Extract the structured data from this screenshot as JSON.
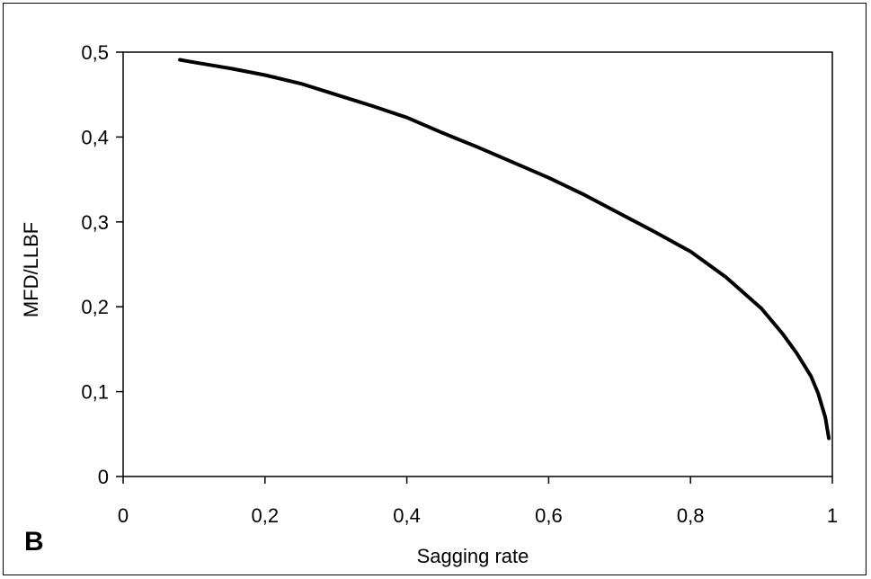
{
  "chart_data": {
    "type": "line",
    "panel_label": "B",
    "title": "",
    "xlabel": "Sagging rate",
    "ylabel": "MFD/LLBF",
    "xlim": [
      0,
      1
    ],
    "ylim": [
      0,
      0.5
    ],
    "x_ticks": [
      {
        "value": 0,
        "label": "0"
      },
      {
        "value": 0.2,
        "label": "0,2"
      },
      {
        "value": 0.4,
        "label": "0,4"
      },
      {
        "value": 0.6,
        "label": "0,6"
      },
      {
        "value": 0.8,
        "label": "0,8"
      },
      {
        "value": 1,
        "label": "1"
      }
    ],
    "y_ticks": [
      {
        "value": 0,
        "label": "0"
      },
      {
        "value": 0.1,
        "label": "0,1"
      },
      {
        "value": 0.2,
        "label": "0,2"
      },
      {
        "value": 0.3,
        "label": "0,3"
      },
      {
        "value": 0.4,
        "label": "0,4"
      },
      {
        "value": 0.5,
        "label": "0,5"
      }
    ],
    "grid": false,
    "legend": "none",
    "series": [
      {
        "color": "#000000",
        "x": [
          0.08,
          0.1,
          0.15,
          0.2,
          0.25,
          0.3,
          0.35,
          0.4,
          0.45,
          0.5,
          0.55,
          0.6,
          0.65,
          0.7,
          0.75,
          0.8,
          0.85,
          0.9,
          0.93,
          0.95,
          0.97,
          0.98,
          0.99,
          0.995
        ],
        "y": [
          0.491,
          0.488,
          0.481,
          0.473,
          0.463,
          0.45,
          0.437,
          0.423,
          0.405,
          0.388,
          0.37,
          0.352,
          0.332,
          0.31,
          0.288,
          0.265,
          0.235,
          0.198,
          0.168,
          0.145,
          0.118,
          0.098,
          0.07,
          0.045
        ]
      }
    ]
  }
}
